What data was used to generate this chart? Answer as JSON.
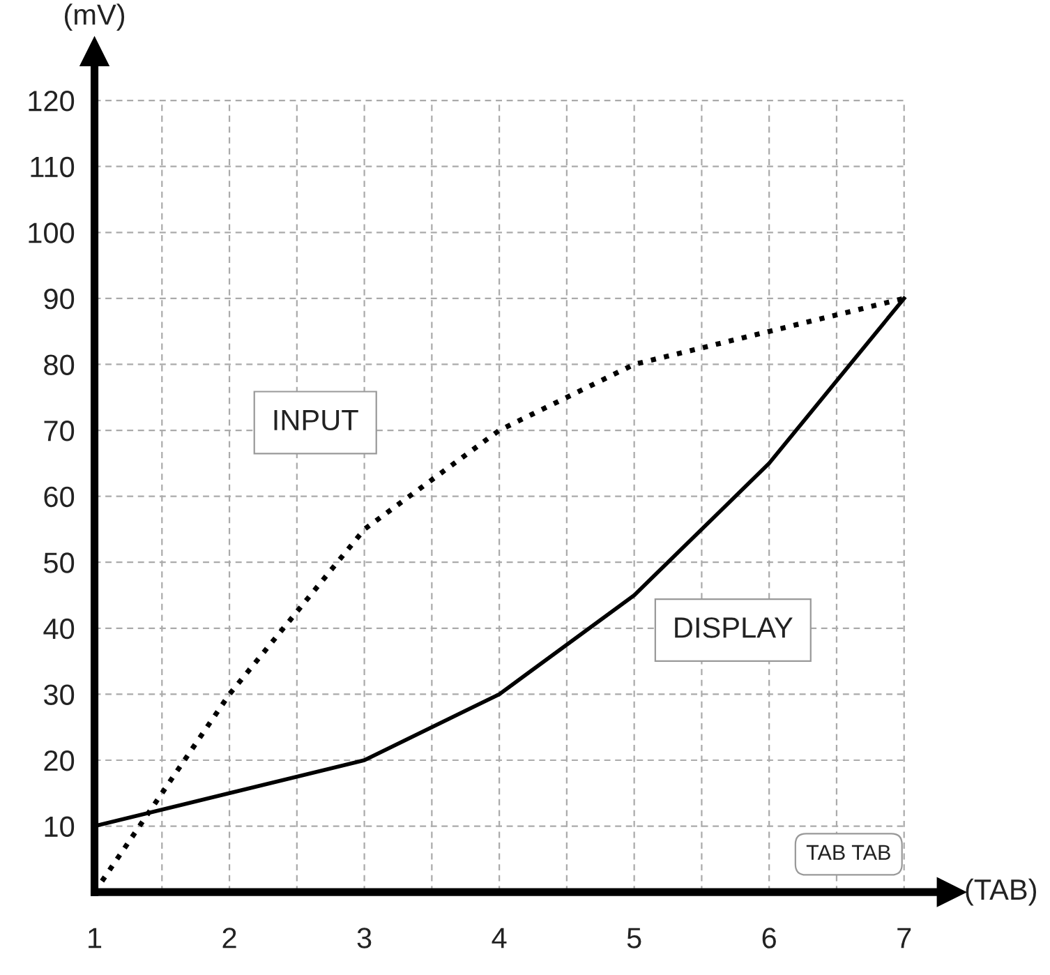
{
  "chart_data": {
    "type": "line",
    "x": [
      1,
      2,
      3,
      4,
      5,
      6,
      7
    ],
    "series": [
      {
        "name": "INPUT",
        "color": "#000000",
        "line_style": "dotted",
        "values": [
          0,
          30,
          55,
          70,
          80,
          85,
          90
        ]
      },
      {
        "name": "DISPLAY",
        "color": "#000000",
        "line_style": "solid",
        "values": [
          10,
          15,
          20,
          30,
          45,
          65,
          90
        ]
      }
    ],
    "xlabel": "(TAB)",
    "ylabel": "(mV)",
    "xlim": [
      1,
      7.35
    ],
    "ylim": [
      0,
      127.4
    ],
    "xticks": [
      1,
      {
        "value": 1.5,
        "label": null
      },
      2,
      {
        "value": 2.5,
        "label": null
      },
      3,
      {
        "value": 3.5,
        "label": null
      },
      4,
      {
        "value": 4.5,
        "label": null
      },
      5,
      {
        "value": 5.5,
        "label": null
      },
      6,
      {
        "value": 6.5,
        "label": null
      },
      7
    ],
    "yticks": [
      10,
      20,
      30,
      40,
      50,
      60,
      70,
      80,
      90,
      100,
      110,
      120
    ],
    "grid": true,
    "marker": "none",
    "annotations": [
      "TAB TAB"
    ]
  }
}
